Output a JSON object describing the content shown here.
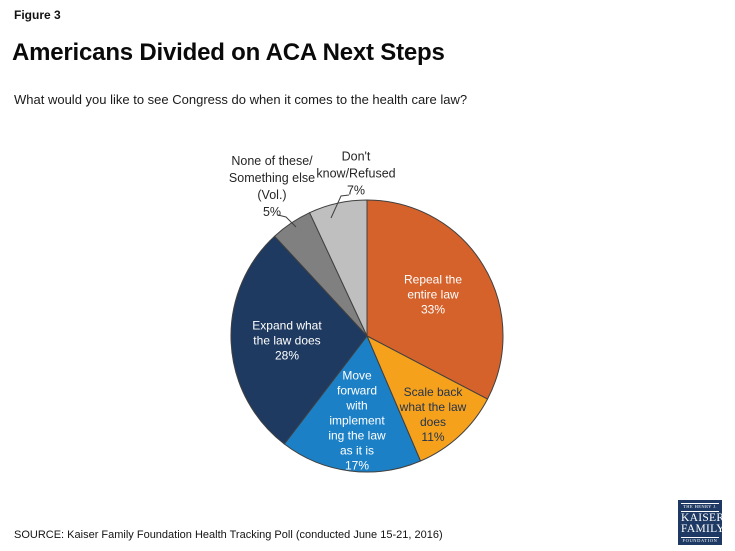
{
  "figure_label": "Figure 3",
  "title": "Americans Divided on ACA Next Steps",
  "subtitle": "What would you like to see Congress do when it comes to the health care law?",
  "source": "SOURCE: Kaiser Family Foundation Health Tracking Poll (conducted June 15-21, 2016)",
  "logo": {
    "line1": "THE HENRY J.",
    "line2": "KAISER",
    "line3": "FAMILY",
    "line4": "FOUNDATION",
    "background": "#1E3A64"
  },
  "chart_data": {
    "type": "pie",
    "title": "Americans Divided on ACA Next Steps",
    "start_angle": "12 o'clock, clockwise",
    "legend_position": "none (labels on/next to slices)",
    "slice_border_color": "#404040",
    "slices": [
      {
        "label": "Repeal the entire law",
        "value": 33,
        "color": "#D5622B",
        "text_color": "#FFFFFF",
        "display": "Repeal the\nentire law\n33%",
        "label_placement": "inside"
      },
      {
        "label": "Scale back what the law does",
        "value": 11,
        "color": "#F6A11C",
        "text_color": "#1F3250",
        "display": "Scale back\nwhat the law\ndoes\n11%",
        "label_placement": "inside"
      },
      {
        "label": "Move forward with implementing the law as it is",
        "value": 17,
        "color": "#1C80C6",
        "text_color": "#FFFFFF",
        "display": "Move\nforward\nwith\nimplement\ning the law\nas it is\n17%",
        "label_placement": "inside"
      },
      {
        "label": "Expand what the law does",
        "value": 28,
        "color": "#1E3A60",
        "text_color": "#FFFFFF",
        "display": "Expand what\nthe law does\n28%",
        "label_placement": "inside"
      },
      {
        "label": "None of these/Something else (Vol.)",
        "value": 5,
        "color": "#808080",
        "text_color": "#262626",
        "display": "None of these/\nSomething else\n(Vol.)\n5%",
        "label_placement": "outside with leader line"
      },
      {
        "label": "Don't know/Refused",
        "value": 7,
        "color": "#BFBFBF",
        "text_color": "#262626",
        "display": "Don't\nknow/Refused\n7%",
        "label_placement": "outside with leader line"
      }
    ]
  }
}
